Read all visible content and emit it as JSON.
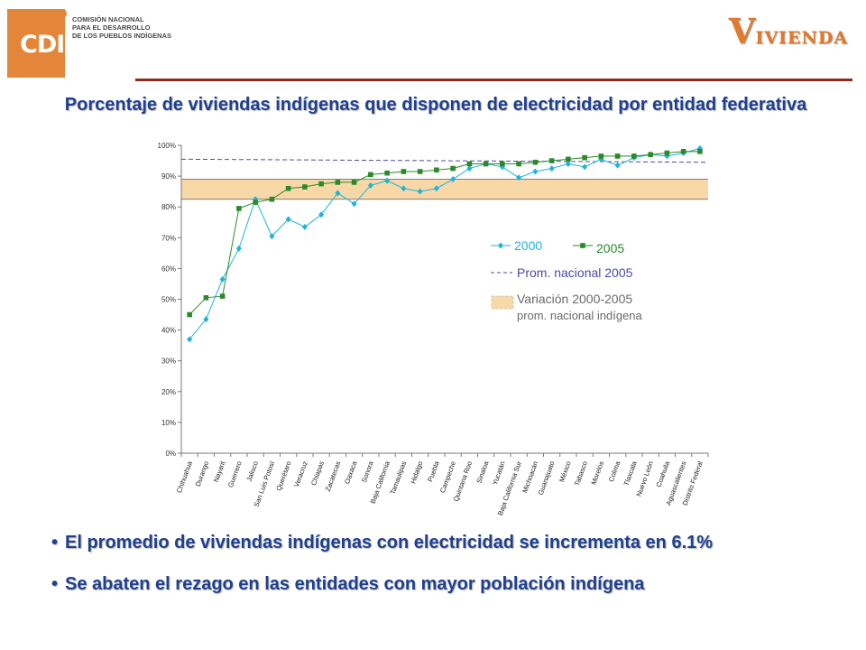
{
  "header": {
    "logo_letters": "CDI",
    "logo_text": [
      "COMISIÓN NACIONAL",
      "PARA EL DESARROLLO",
      "DE LOS PUEBLOS INDÍGENAS"
    ],
    "brand_initial": "V",
    "brand_rest": "IVIENDA",
    "brand_color": "#e2792c",
    "title": "Porcentaje de viviendas indígenas que disponen de electricidad por entidad federativa"
  },
  "chart_data": {
    "type": "line",
    "categories": [
      "Chihuahua",
      "Durango",
      "Nayarit",
      "Guerrero",
      "Jalisco",
      "San Luis Potosí",
      "Querétaro",
      "Veracruz",
      "Chiapas",
      "Zacatecas",
      "Oaxaca",
      "Sonora",
      "Baja California",
      "Tamaulipas",
      "Hidalgo",
      "Puebla",
      "Campeche",
      "Quintana Roo",
      "Sinaloa",
      "Yucatán",
      "Baja California Sur",
      "Michoacán",
      "Guanajuato",
      "México",
      "Tabasco",
      "Morelos",
      "Colima",
      "Tlaxcala",
      "Nuevo León",
      "Coahuila",
      "Aguascalientes",
      "Distrito Federal"
    ],
    "series": [
      {
        "name": "2000",
        "color": "#1eb4d8",
        "marker": "diamond",
        "values": [
          37,
          43.5,
          56.5,
          66.5,
          82.5,
          70.5,
          76,
          73.5,
          77.5,
          84.5,
          81,
          87,
          88.5,
          86,
          85,
          86,
          89,
          92.5,
          94,
          93,
          89.5,
          91.5,
          92.5,
          94,
          93,
          95.5,
          93.5,
          96,
          97,
          96.5,
          97.5,
          99
        ]
      },
      {
        "name": "2005",
        "color": "#2a8a2a",
        "marker": "square",
        "values": [
          45,
          50.5,
          51,
          79.5,
          81.5,
          82.5,
          86,
          86.5,
          87.5,
          88,
          88,
          90.5,
          91,
          91.5,
          91.5,
          92,
          92.5,
          94,
          94,
          94,
          94,
          94.5,
          95,
          95.5,
          96,
          96.5,
          96.5,
          96.5,
          97,
          97.5,
          98,
          98
        ]
      }
    ],
    "reference_line": {
      "name": "Prom. nacional 2005",
      "value": 95.5,
      "color": "#4b4ba8"
    },
    "band": {
      "name": "Variación 2000-2005",
      "name_line2": "prom. nacional indígena",
      "from": 82.5,
      "to": 89,
      "color": "#f9d8a8"
    },
    "ylim": [
      0,
      100
    ],
    "y_ticks": [
      "0%",
      "10%",
      "20%",
      "30%",
      "40%",
      "50%",
      "60%",
      "70%",
      "80%",
      "90%",
      "100%"
    ],
    "y_tick_values": [
      0,
      10,
      20,
      30,
      40,
      50,
      60,
      70,
      80,
      90,
      100
    ],
    "legend_placement": "right-middle",
    "grid": false
  },
  "bullets": [
    "El promedio de viviendas indígenas con electricidad se incrementa en 6.1%",
    "Se abaten el rezago en las entidades con mayor población indígena"
  ]
}
